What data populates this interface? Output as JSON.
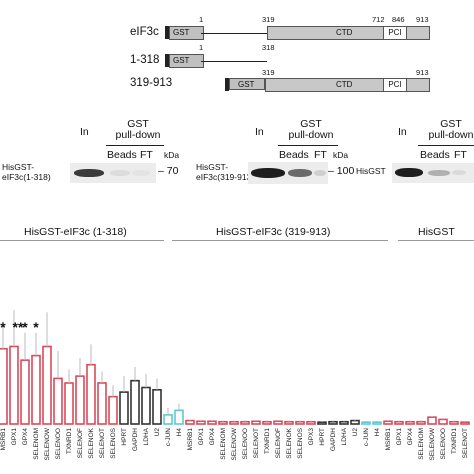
{
  "constructs": {
    "rows": [
      {
        "label": "eIF3c",
        "gst": "GST",
        "ctd": "CTD",
        "pci": "PCI"
      },
      {
        "label": "1-318",
        "gst": "GST"
      },
      {
        "label": "319-913",
        "gst": "GST",
        "ctd": "CTD",
        "pci": "PCI"
      }
    ],
    "positions": {
      "eif3c": [
        "1",
        "319",
        "712",
        "846",
        "913"
      ],
      "n_term": [
        "1",
        "318"
      ],
      "c_term": [
        "319",
        "913"
      ]
    }
  },
  "blots": [
    {
      "protein_label": "HisGST-\neIF3c(1-318)",
      "in": "In",
      "pulldown": "GST\npull-down",
      "beads": "Beads",
      "ft": "FT",
      "kda_unit": "kDa",
      "marker": "70"
    },
    {
      "protein_label": "HisGST-\neIF3c(319-913)",
      "in": "In",
      "pulldown": "GST\npull-down",
      "beads": "Beads",
      "ft": "FT",
      "kda_unit": "kDa",
      "marker": "100"
    },
    {
      "protein_label": "HisGST",
      "in": "In",
      "pulldown": "GST\npull-down",
      "beads": "Beads",
      "ft": "FT"
    }
  ],
  "groups": [
    "HisGST-eIF3c (1-318)",
    "HisGST-eIF3c (319-913)",
    "HisGST"
  ],
  "colors": {
    "selenoprotein": "#d94a5a",
    "housekeeping": "#333333",
    "control": "#5ec8d6",
    "gst": "#c0c0c0",
    "ctd": "#c8c8c8",
    "pci": "#ffffff"
  },
  "chart_data": {
    "type": "bar",
    "categories": [
      "MSRB1",
      "GPX1",
      "GPX4",
      "SELENOM",
      "SELENOW",
      "SELENOO",
      "TXNRD1",
      "SELENOF",
      "SELENOK",
      "SELENOT",
      "SELENOS",
      "HPRT",
      "GAPDH",
      "LDHA",
      "U2",
      "c-JUN",
      "H4",
      "MSRB1",
      "GPX1",
      "GPX4",
      "SELENOM",
      "SELENOW",
      "SELENOO",
      "SELENOT",
      "TXNRD1",
      "SELENOF",
      "SELENOK",
      "SELENOS",
      "GPX3",
      "HPRT",
      "GAPDH",
      "LDHA",
      "U2",
      "c-JUN",
      "H4",
      "MSRB1",
      "GPX1",
      "GPX4",
      "SELENOM",
      "SELENOW",
      "SELENOO",
      "TXNRD1",
      "SELENOT"
    ],
    "series": [
      {
        "name": "",
        "values": [
          3.3,
          3.4,
          2.8,
          3.0,
          3.4,
          2.0,
          1.8,
          2.1,
          2.6,
          1.8,
          1.2,
          1.4,
          1.9,
          1.6,
          1.5,
          0.4,
          0.6,
          0.15,
          0.12,
          0.12,
          0.1,
          0.1,
          0.1,
          0.12,
          0.1,
          0.12,
          0.1,
          0.1,
          0.1,
          0.08,
          0.1,
          0.1,
          0.15,
          0.08,
          0.08,
          0.12,
          0.1,
          0.1,
          0.1,
          0.3,
          0.2,
          0.1,
          0.08
        ],
        "errors": [
          1.2,
          1.6,
          1.2,
          1.0,
          1.5,
          1.2,
          0.6,
          0.8,
          0.9,
          0.5,
          0.5,
          0.7,
          0.6,
          0.6,
          0.5,
          0.3,
          0.3,
          0.05,
          0.05,
          0.05,
          0.05,
          0.05,
          0.05,
          0.05,
          0.05,
          0.05,
          0.05,
          0.05,
          0.05,
          0.05,
          0.05,
          0.05,
          0.05,
          0.05,
          0.05,
          0.05,
          0.05,
          0.05,
          0.05,
          0.05,
          0.05,
          0.05,
          0.05
        ]
      }
    ],
    "bar_kind": [
      "sel",
      "sel",
      "sel",
      "sel",
      "sel",
      "sel",
      "sel",
      "sel",
      "sel",
      "sel",
      "sel",
      "hk",
      "hk",
      "hk",
      "hk",
      "ctl",
      "ctl",
      "sel",
      "sel",
      "sel",
      "sel",
      "sel",
      "sel",
      "sel",
      "sel",
      "sel",
      "sel",
      "sel",
      "sel",
      "hk",
      "hk",
      "hk",
      "hk",
      "ctl",
      "ctl",
      "sel",
      "sel",
      "sel",
      "sel",
      "sel",
      "sel",
      "sel",
      "sel"
    ],
    "significance": [
      {
        "category_index": 0,
        "label": "*"
      },
      {
        "category_index": 1,
        "label": "**"
      },
      {
        "category_index": 2,
        "label": "*"
      },
      {
        "category_index": 3,
        "label": "*"
      }
    ],
    "ylim": [
      0,
      5
    ]
  }
}
